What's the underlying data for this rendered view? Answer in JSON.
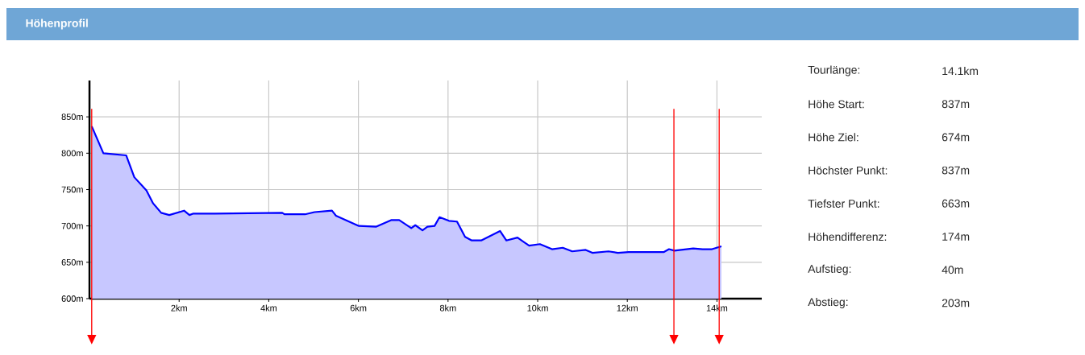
{
  "chart_data": [
    {
      "type": "area",
      "title": "Höhenprofil",
      "x": [
        0.05,
        0.31,
        0.82,
        1.0,
        1.27,
        1.42,
        1.6,
        1.78,
        2.11,
        2.23,
        2.32,
        2.8,
        4.3,
        4.35,
        4.81,
        5.02,
        5.41,
        5.5,
        6.01,
        6.4,
        6.73,
        6.91,
        7.18,
        7.27,
        7.43,
        7.54,
        7.7,
        7.81,
        8.02,
        8.2,
        8.38,
        8.53,
        8.74,
        9.16,
        9.3,
        9.55,
        9.69,
        9.81,
        10.05,
        10.32,
        10.56,
        10.77,
        11.07,
        11.22,
        11.58,
        11.79,
        12.03,
        12.81,
        12.93,
        13.05,
        13.47,
        13.68,
        13.89,
        14.1
      ],
      "series": [
        {
          "color": "#0000ff",
          "values": [
            837,
            800,
            797,
            767,
            749,
            731,
            718,
            715,
            721,
            715,
            717,
            717,
            718,
            716,
            716,
            719,
            721,
            714,
            700,
            699,
            708,
            708,
            697,
            701,
            694,
            699,
            700,
            712,
            707,
            706,
            685,
            680,
            680,
            693,
            680,
            684,
            678,
            673,
            675,
            668,
            670,
            665,
            667,
            663,
            665,
            663,
            664,
            664,
            668,
            666,
            669,
            668,
            668,
            672
          ]
        }
      ],
      "xlim": [
        0,
        15
      ],
      "ylim": [
        600,
        900
      ],
      "xticks": [
        {
          "value": 2,
          "label": "2km"
        },
        {
          "value": 4,
          "label": "4km"
        },
        {
          "value": 6,
          "label": "6km"
        },
        {
          "value": 8,
          "label": "8km"
        },
        {
          "value": 10,
          "label": "10km"
        },
        {
          "value": 12,
          "label": "12km"
        },
        {
          "value": 14,
          "label": "14km"
        }
      ],
      "yticks": [
        {
          "value": 600,
          "label": "600m"
        },
        {
          "value": 650,
          "label": "650m"
        },
        {
          "value": 700,
          "label": "700m"
        },
        {
          "value": 750,
          "label": "750m"
        },
        {
          "value": 800,
          "label": "800m"
        },
        {
          "value": 850,
          "label": "850m"
        }
      ],
      "grid": true,
      "marker": "none",
      "line_style": "solid",
      "ref_lines": [
        {
          "axis": "x",
          "value": 0.05,
          "color": "#ff0000"
        },
        {
          "axis": "x",
          "value": 13.04,
          "color": "#ff0000"
        },
        {
          "axis": "x",
          "value": 14.05,
          "color": "#ff0000"
        }
      ]
    },
    {
      "type": "other",
      "annotations": [
        "Tourlänge:",
        "14.1km",
        "Höhe Start:",
        "837m",
        "Höhe Ziel:",
        "674m",
        "Höchster Punkt:",
        "837m",
        "Tiefster Punkt:",
        "663m",
        "Höhendifferenz:",
        "174m",
        "Aufstieg:",
        "40m",
        "Abstieg:",
        "203m"
      ]
    }
  ]
}
